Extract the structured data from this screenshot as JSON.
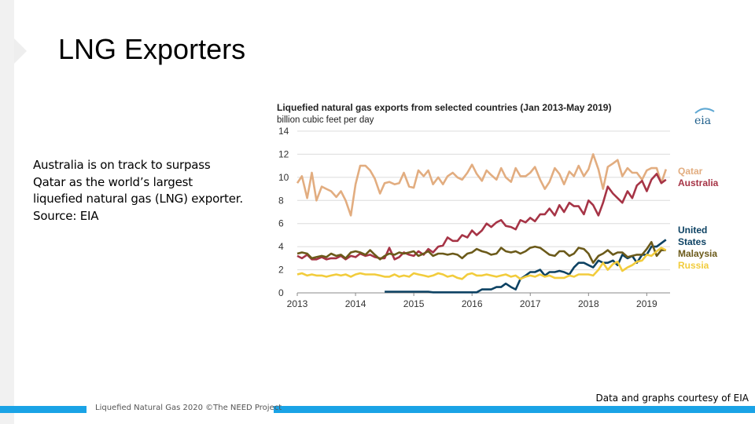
{
  "slide": {
    "title": "LNG Exporters",
    "body_lines": [
      "Australia is on track to surpass",
      "Qatar as the world’s largest",
      "liquefied natural gas (LNG) exporter.",
      "Source: EIA"
    ],
    "footer": "Liquefied Natural Gas 2020 ©The NEED Project",
    "credit": "Data and graphs courtesy of EIA"
  },
  "chart_data": {
    "type": "line",
    "title": "Liquefied natural gas exports from selected countries (Jan 2013-May 2019)",
    "subtitle": "billion cubic feet per day",
    "logo_text": "eia",
    "ylim": [
      0,
      14
    ],
    "yticks": [
      "14",
      "12",
      "10",
      "8",
      "6",
      "4",
      "2",
      "0"
    ],
    "xlim": [
      2013,
      2019.4
    ],
    "xticks": [
      "2013",
      "2014",
      "2015",
      "2016",
      "2017",
      "2018",
      "2019"
    ],
    "grid": true,
    "legend": "right",
    "colors": {
      "qatar": "#e2ad80",
      "australia": "#a63446",
      "us": "#0d4263",
      "malaysia": "#6b5a1a",
      "russia": "#f2cc3c"
    },
    "series": [
      {
        "key": "qatar",
        "name": "Qatar",
        "x": [
          2013.0,
          2013.08,
          2013.17,
          2013.25,
          2013.33,
          2013.42,
          2013.5,
          2013.58,
          2013.67,
          2013.75,
          2013.83,
          2013.92,
          2014.0,
          2014.08,
          2014.17,
          2014.25,
          2014.33,
          2014.42,
          2014.5,
          2014.58,
          2014.67,
          2014.75,
          2014.83,
          2014.92,
          2015.0,
          2015.08,
          2015.17,
          2015.25,
          2015.33,
          2015.42,
          2015.5,
          2015.58,
          2015.67,
          2015.75,
          2015.83,
          2015.92,
          2016.0,
          2016.08,
          2016.17,
          2016.25,
          2016.33,
          2016.42,
          2016.5,
          2016.58,
          2016.67,
          2016.75,
          2016.83,
          2016.92,
          2017.0,
          2017.08,
          2017.17,
          2017.25,
          2017.33,
          2017.42,
          2017.5,
          2017.58,
          2017.67,
          2017.75,
          2017.83,
          2017.92,
          2018.0,
          2018.08,
          2018.17,
          2018.25,
          2018.33,
          2018.42,
          2018.5,
          2018.58,
          2018.67,
          2018.75,
          2018.83,
          2018.92,
          2019.0,
          2019.08,
          2019.17,
          2019.25,
          2019.33
        ],
        "values": [
          9.5,
          10.1,
          8.2,
          10.4,
          8.0,
          9.2,
          9.0,
          8.8,
          8.3,
          8.8,
          8.0,
          6.7,
          9.4,
          11.0,
          11.0,
          10.6,
          9.9,
          8.6,
          9.5,
          9.6,
          9.4,
          9.5,
          10.4,
          9.2,
          9.1,
          10.6,
          10.1,
          10.6,
          9.4,
          10.0,
          9.4,
          10.1,
          10.4,
          10.0,
          9.8,
          10.4,
          11.1,
          10.3,
          9.7,
          10.6,
          10.2,
          9.8,
          10.8,
          10.0,
          9.6,
          10.8,
          10.1,
          10.1,
          10.4,
          10.9,
          9.8,
          9.0,
          9.6,
          10.8,
          10.3,
          9.4,
          10.5,
          10.1,
          11.0,
          10.1,
          10.7,
          12.0,
          10.7,
          9.0,
          10.9,
          11.2,
          11.5,
          10.1,
          10.8,
          10.4,
          10.4,
          9.8,
          10.6,
          10.8,
          10.8,
          9.5,
          10.7
        ]
      },
      {
        "key": "australia",
        "name": "Australia",
        "x": [
          2013.0,
          2013.08,
          2013.17,
          2013.25,
          2013.33,
          2013.42,
          2013.5,
          2013.58,
          2013.67,
          2013.75,
          2013.83,
          2013.92,
          2014.0,
          2014.08,
          2014.17,
          2014.25,
          2014.33,
          2014.42,
          2014.5,
          2014.58,
          2014.67,
          2014.75,
          2014.83,
          2014.92,
          2015.0,
          2015.08,
          2015.17,
          2015.25,
          2015.33,
          2015.42,
          2015.5,
          2015.58,
          2015.67,
          2015.75,
          2015.83,
          2015.92,
          2016.0,
          2016.08,
          2016.17,
          2016.25,
          2016.33,
          2016.42,
          2016.5,
          2016.58,
          2016.67,
          2016.75,
          2016.83,
          2016.92,
          2017.0,
          2017.08,
          2017.17,
          2017.25,
          2017.33,
          2017.42,
          2017.5,
          2017.58,
          2017.67,
          2017.75,
          2017.83,
          2017.92,
          2018.0,
          2018.08,
          2018.17,
          2018.25,
          2018.33,
          2018.42,
          2018.5,
          2018.58,
          2018.67,
          2018.75,
          2018.83,
          2018.92,
          2019.0,
          2019.08,
          2019.17,
          2019.25,
          2019.33
        ],
        "values": [
          3.2,
          3.0,
          3.3,
          2.9,
          2.9,
          3.1,
          2.9,
          3.0,
          3.0,
          3.2,
          2.9,
          3.2,
          3.1,
          3.4,
          3.2,
          3.3,
          3.1,
          3.0,
          3.0,
          3.9,
          2.9,
          3.1,
          3.5,
          3.3,
          3.2,
          3.6,
          3.3,
          3.8,
          3.5,
          4.0,
          4.1,
          4.8,
          4.5,
          4.5,
          5.0,
          4.8,
          5.4,
          5.0,
          5.4,
          6.0,
          5.7,
          6.1,
          6.3,
          5.8,
          5.7,
          5.5,
          6.3,
          6.1,
          6.5,
          6.2,
          6.8,
          6.8,
          7.3,
          6.7,
          7.6,
          7.0,
          7.8,
          7.5,
          7.5,
          6.8,
          8.0,
          7.6,
          6.7,
          7.8,
          9.2,
          8.6,
          8.2,
          7.8,
          8.8,
          8.2,
          9.3,
          9.7,
          8.8,
          9.8,
          10.3,
          9.5,
          9.8
        ]
      },
      {
        "key": "us",
        "name": "United States",
        "x": [
          2014.5,
          2014.67,
          2015.0,
          2015.25,
          2015.33,
          2015.83,
          2016.0,
          2016.08,
          2016.17,
          2016.25,
          2016.33,
          2016.42,
          2016.5,
          2016.58,
          2016.67,
          2016.75,
          2016.83,
          2016.92,
          2017.0,
          2017.08,
          2017.17,
          2017.25,
          2017.33,
          2017.42,
          2017.5,
          2017.58,
          2017.67,
          2017.75,
          2017.83,
          2017.92,
          2018.0,
          2018.08,
          2018.17,
          2018.25,
          2018.33,
          2018.42,
          2018.5,
          2018.58,
          2018.67,
          2018.75,
          2018.83,
          2018.92,
          2019.0,
          2019.08,
          2019.17,
          2019.25,
          2019.33
        ],
        "values": [
          0.1,
          0.1,
          0.1,
          0.1,
          0.05,
          0.05,
          0.05,
          0.05,
          0.3,
          0.3,
          0.3,
          0.5,
          0.5,
          0.8,
          0.5,
          0.3,
          1.2,
          1.5,
          1.8,
          1.8,
          2.0,
          1.5,
          1.8,
          1.8,
          1.9,
          1.8,
          1.6,
          2.2,
          2.6,
          2.6,
          2.4,
          2.2,
          2.8,
          2.6,
          2.6,
          2.8,
          2.4,
          3.3,
          3.0,
          3.2,
          2.6,
          3.3,
          3.3,
          4.0,
          4.0,
          4.3,
          4.6
        ]
      },
      {
        "key": "malaysia",
        "name": "Malaysia",
        "x": [
          2013.0,
          2013.08,
          2013.17,
          2013.25,
          2013.33,
          2013.42,
          2013.5,
          2013.58,
          2013.67,
          2013.75,
          2013.83,
          2013.92,
          2014.0,
          2014.08,
          2014.17,
          2014.25,
          2014.33,
          2014.42,
          2014.5,
          2014.58,
          2014.67,
          2014.75,
          2014.83,
          2014.92,
          2015.0,
          2015.08,
          2015.17,
          2015.25,
          2015.33,
          2015.42,
          2015.5,
          2015.58,
          2015.67,
          2015.75,
          2015.83,
          2015.92,
          2016.0,
          2016.08,
          2016.17,
          2016.25,
          2016.33,
          2016.42,
          2016.5,
          2016.58,
          2016.67,
          2016.75,
          2016.83,
          2016.92,
          2017.0,
          2017.08,
          2017.17,
          2017.25,
          2017.33,
          2017.42,
          2017.5,
          2017.58,
          2017.67,
          2017.75,
          2017.83,
          2017.92,
          2018.0,
          2018.08,
          2018.17,
          2018.25,
          2018.33,
          2018.42,
          2018.5,
          2018.58,
          2018.67,
          2018.75,
          2018.83,
          2018.92,
          2019.0,
          2019.08,
          2019.17,
          2019.25,
          2019.33
        ],
        "values": [
          3.4,
          3.5,
          3.4,
          3.0,
          3.1,
          3.2,
          3.1,
          3.4,
          3.2,
          3.3,
          3.0,
          3.5,
          3.6,
          3.5,
          3.3,
          3.7,
          3.3,
          2.9,
          3.2,
          3.4,
          3.3,
          3.5,
          3.4,
          3.5,
          3.6,
          3.2,
          3.4,
          3.6,
          3.2,
          3.4,
          3.4,
          3.3,
          3.4,
          3.3,
          3.0,
          3.4,
          3.5,
          3.8,
          3.6,
          3.5,
          3.3,
          3.4,
          3.9,
          3.6,
          3.5,
          3.6,
          3.4,
          3.6,
          3.9,
          4.0,
          3.9,
          3.6,
          3.3,
          3.2,
          3.6,
          3.6,
          3.2,
          3.4,
          3.9,
          3.8,
          3.4,
          2.6,
          3.2,
          3.4,
          3.7,
          3.3,
          3.5,
          3.5,
          3.1,
          3.2,
          3.3,
          3.3,
          3.8,
          4.4,
          3.2,
          3.7,
          3.7
        ]
      },
      {
        "key": "russia",
        "name": "Russia",
        "x": [
          2013.0,
          2013.08,
          2013.17,
          2013.25,
          2013.33,
          2013.42,
          2013.5,
          2013.58,
          2013.67,
          2013.75,
          2013.83,
          2013.92,
          2014.0,
          2014.08,
          2014.17,
          2014.25,
          2014.33,
          2014.42,
          2014.5,
          2014.58,
          2014.67,
          2014.75,
          2014.83,
          2014.92,
          2015.0,
          2015.08,
          2015.17,
          2015.25,
          2015.33,
          2015.42,
          2015.5,
          2015.58,
          2015.67,
          2015.75,
          2015.83,
          2015.92,
          2016.0,
          2016.08,
          2016.17,
          2016.25,
          2016.33,
          2016.42,
          2016.5,
          2016.58,
          2016.67,
          2016.75,
          2016.83,
          2016.92,
          2017.0,
          2017.08,
          2017.17,
          2017.25,
          2017.33,
          2017.42,
          2017.5,
          2017.58,
          2017.67,
          2017.75,
          2017.83,
          2017.92,
          2018.0,
          2018.08,
          2018.17,
          2018.25,
          2018.33,
          2018.42,
          2018.5,
          2018.58,
          2018.67,
          2018.75,
          2018.83,
          2018.92,
          2019.0,
          2019.08,
          2019.17,
          2019.25,
          2019.33
        ],
        "values": [
          1.6,
          1.7,
          1.5,
          1.6,
          1.5,
          1.5,
          1.4,
          1.5,
          1.6,
          1.5,
          1.6,
          1.4,
          1.6,
          1.7,
          1.6,
          1.6,
          1.6,
          1.5,
          1.4,
          1.4,
          1.6,
          1.4,
          1.5,
          1.4,
          1.7,
          1.6,
          1.5,
          1.4,
          1.5,
          1.7,
          1.6,
          1.4,
          1.5,
          1.3,
          1.2,
          1.6,
          1.7,
          1.5,
          1.5,
          1.6,
          1.5,
          1.4,
          1.5,
          1.6,
          1.4,
          1.5,
          1.2,
          1.4,
          1.5,
          1.4,
          1.6,
          1.4,
          1.5,
          1.3,
          1.3,
          1.3,
          1.5,
          1.4,
          1.6,
          1.6,
          1.6,
          1.5,
          2.0,
          2.6,
          2.0,
          2.5,
          2.7,
          1.9,
          2.2,
          2.4,
          2.7,
          2.8,
          3.3,
          3.2,
          3.6,
          3.9,
          3.7
        ]
      }
    ],
    "legend_labels": [
      {
        "key": "qatar",
        "text": "Qatar"
      },
      {
        "key": "australia",
        "text": "Australia"
      },
      {
        "key": "us",
        "text": "United"
      },
      {
        "key": "us",
        "text": "States"
      },
      {
        "key": "malaysia",
        "text": "Malaysia"
      },
      {
        "key": "russia",
        "text": "Russia"
      }
    ]
  }
}
